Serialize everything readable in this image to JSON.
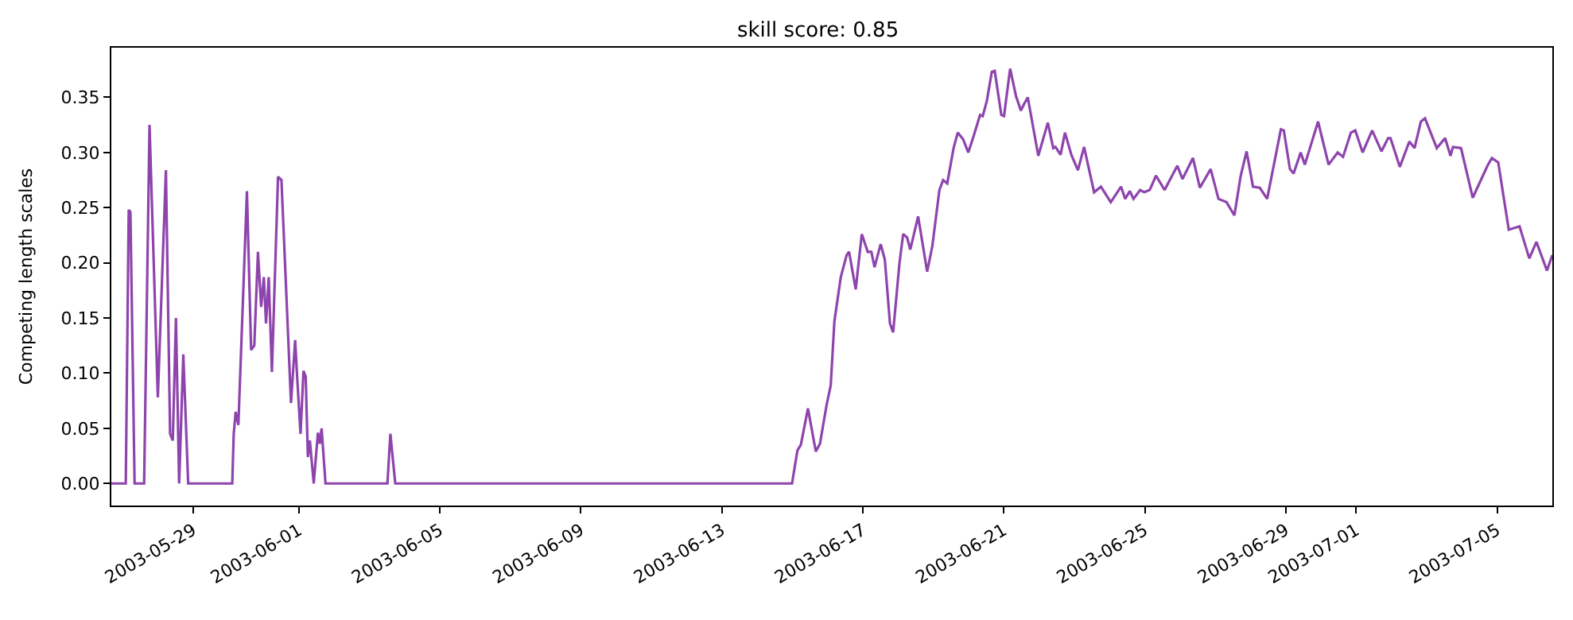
{
  "chart_data": {
    "type": "line",
    "title": "skill score: 0.85",
    "ylabel": "Competing length scales",
    "x": [
      "2003-05-26T16:20",
      "2003-05-27T02:10",
      "2003-05-27T04:10",
      "2003-05-27T05:20",
      "2003-05-27T08:10",
      "2003-05-27T14:40",
      "2003-05-27T18:20",
      "2003-05-28T00:00",
      "2003-05-28T05:30",
      "2003-05-28T08:20",
      "2003-05-28T10:10",
      "2003-05-28T12:20",
      "2003-05-28T14:30",
      "2003-05-28T17:20",
      "2003-05-28T20:40",
      "2003-05-30T02:40",
      "2003-05-30T03:40",
      "2003-05-30T05:00",
      "2003-05-30T06:50",
      "2003-05-30T12:40",
      "2003-05-30T15:30",
      "2003-05-30T17:40",
      "2003-05-30T20:10",
      "2003-05-30T22:20",
      "2003-05-31T00:10",
      "2003-05-31T01:40",
      "2003-05-31T03:30",
      "2003-05-31T05:40",
      "2003-05-31T09:50",
      "2003-05-31T12:10",
      "2003-05-31T18:40",
      "2003-05-31T21:30",
      "2003-05-31T22:50",
      "2003-06-01T01:10",
      "2003-06-01T03:10",
      "2003-06-01T04:40",
      "2003-06-01T06:10",
      "2003-06-01T07:30",
      "2003-06-01T10:10",
      "2003-06-01T13:00",
      "2003-06-01T14:20",
      "2003-06-01T15:30",
      "2003-06-01T18:10",
      "2003-06-03T12:20",
      "2003-06-03T14:20",
      "2003-06-03T17:40",
      "2003-06-14T23:50",
      "2003-06-15T03:30",
      "2003-06-15T05:50",
      "2003-06-15T10:40",
      "2003-06-15T16:00",
      "2003-06-15T18:50",
      "2003-06-15T23:20",
      "2003-06-16T02:10",
      "2003-06-16T04:40",
      "2003-06-16T09:00",
      "2003-06-16T13:00",
      "2003-06-16T14:40",
      "2003-06-16T19:10",
      "2003-06-16T23:20",
      "2003-06-17T03:20",
      "2003-06-17T05:50",
      "2003-06-17T08:00",
      "2003-06-17T12:10",
      "2003-06-17T15:00",
      "2003-06-17T18:30",
      "2003-06-17T20:40",
      "2003-06-18T01:00",
      "2003-06-18T03:30",
      "2003-06-18T06:10",
      "2003-06-18T08:20",
      "2003-06-18T13:40",
      "2003-06-18T19:50",
      "2003-06-18T23:20",
      "2003-06-19T04:10",
      "2003-06-19T06:40",
      "2003-06-19T09:30",
      "2003-06-19T13:50",
      "2003-06-19T16:40",
      "2003-06-19T20:20",
      "2003-06-19T23:50",
      "2003-06-20T03:30",
      "2003-06-20T07:50",
      "2003-06-20T09:40",
      "2003-06-20T12:30",
      "2003-06-20T15:50",
      "2003-06-20T17:50",
      "2003-06-20T22:20",
      "2003-06-21T00:10",
      "2003-06-21T04:20",
      "2003-06-21T08:20",
      "2003-06-21T11:40",
      "2003-06-21T13:50",
      "2003-06-21T16:20",
      "2003-06-21T23:30",
      "2003-06-22T06:00",
      "2003-06-22T09:40",
      "2003-06-22T11:10",
      "2003-06-22T14:40",
      "2003-06-22T17:40",
      "2003-06-22T22:00",
      "2003-06-23T02:30",
      "2003-06-23T06:40",
      "2003-06-23T13:30",
      "2003-06-23T18:10",
      "2003-06-24T00:50",
      "2003-06-24T07:50",
      "2003-06-24T10:40",
      "2003-06-24T13:50",
      "2003-06-24T16:20",
      "2003-06-24T20:50",
      "2003-06-24T23:40",
      "2003-06-25T03:20",
      "2003-06-25T07:40",
      "2003-06-25T13:30",
      "2003-06-25T22:10",
      "2003-06-26T01:40",
      "2003-06-26T08:50",
      "2003-06-26T13:30",
      "2003-06-26T20:50",
      "2003-06-27T02:10",
      "2003-06-27T07:40",
      "2003-06-27T13:00",
      "2003-06-27T17:20",
      "2003-06-27T21:20",
      "2003-06-28T01:40",
      "2003-06-28T06:20",
      "2003-06-28T11:20",
      "2003-06-28T20:40",
      "2003-06-28T22:40",
      "2003-06-29T02:50",
      "2003-06-29T05:20",
      "2003-06-29T10:10",
      "2003-06-29T13:00",
      "2003-06-29T22:00",
      "2003-06-30T05:10",
      "2003-06-30T11:20",
      "2003-06-30T15:00",
      "2003-06-30T20:20",
      "2003-06-30T23:20",
      "2003-07-01T04:20",
      "2003-07-01T10:50",
      "2003-07-01T17:10",
      "2003-07-01T21:40",
      "2003-07-01T23:20",
      "2003-07-02T05:40",
      "2003-07-02T12:10",
      "2003-07-02T15:40",
      "2003-07-02T20:00",
      "2003-07-02T22:50",
      "2003-07-03T06:50",
      "2003-07-03T12:30",
      "2003-07-03T16:10",
      "2003-07-03T17:50",
      "2003-07-03T23:20",
      "2003-07-04T07:20",
      "2003-07-04T17:20",
      "2003-07-04T20:20",
      "2003-07-05T00:40",
      "2003-07-05T07:50",
      "2003-07-05T15:10",
      "2003-07-05T21:50",
      "2003-07-06T02:40",
      "2003-07-06T09:50",
      "2003-07-06T13:30"
    ],
    "series": [
      {
        "color": "#8e44ad",
        "values": [
          0,
          0,
          0.248,
          0.246,
          0,
          0,
          0.325,
          0.078,
          0.284,
          0.045,
          0.039,
          0.15,
          0,
          0.117,
          0,
          0,
          0.045,
          0.065,
          0.053,
          0.265,
          0.121,
          0.125,
          0.21,
          0.16,
          0.187,
          0.145,
          0.187,
          0.101,
          0.278,
          0.275,
          0.073,
          0.13,
          0.097,
          0.045,
          0.102,
          0.097,
          0.024,
          0.039,
          0,
          0.046,
          0.036,
          0.05,
          0,
          0,
          0.045,
          0,
          0,
          0.03,
          0.035,
          0.068,
          0.029,
          0.036,
          0.071,
          0.089,
          0.147,
          0.187,
          0.207,
          0.21,
          0.176,
          0.226,
          0.21,
          0.21,
          0.196,
          0.217,
          0.203,
          0.145,
          0.137,
          0.2,
          0.226,
          0.223,
          0.212,
          0.242,
          0.192,
          0.215,
          0.266,
          0.275,
          0.272,
          0.304,
          0.318,
          0.312,
          0.3,
          0.315,
          0.334,
          0.333,
          0.347,
          0.373,
          0.374,
          0.334,
          0.333,
          0.376,
          0.351,
          0.338,
          0.344,
          0.35,
          0.297,
          0.327,
          0.304,
          0.305,
          0.298,
          0.318,
          0.298,
          0.284,
          0.305,
          0.264,
          0.269,
          0.255,
          0.269,
          0.258,
          0.265,
          0.258,
          0.266,
          0.264,
          0.266,
          0.279,
          0.266,
          0.288,
          0.276,
          0.295,
          0.268,
          0.285,
          0.258,
          0.255,
          0.243,
          0.279,
          0.301,
          0.269,
          0.268,
          0.258,
          0.321,
          0.32,
          0.285,
          0.281,
          0.3,
          0.289,
          0.328,
          0.289,
          0.3,
          0.296,
          0.318,
          0.32,
          0.3,
          0.32,
          0.301,
          0.313,
          0.313,
          0.287,
          0.31,
          0.304,
          0.328,
          0.331,
          0.304,
          0.313,
          0.297,
          0.305,
          0.304,
          0.259,
          0.288,
          0.295,
          0.291,
          0.23,
          0.233,
          0.204,
          0.219,
          0.193,
          0.207
        ]
      }
    ],
    "xlim": [
      "2003-05-26T16:20",
      "2003-07-06T13:30"
    ],
    "xticks": [
      {
        "value": "2003-05-29",
        "label": "2003-05-29"
      },
      {
        "value": "2003-06-01",
        "label": "2003-06-01"
      },
      {
        "value": "2003-06-05",
        "label": "2003-06-05"
      },
      {
        "value": "2003-06-09",
        "label": "2003-06-09"
      },
      {
        "value": "2003-06-13",
        "label": "2003-06-13"
      },
      {
        "value": "2003-06-17",
        "label": "2003-06-17"
      },
      {
        "value": "2003-06-21",
        "label": "2003-06-21"
      },
      {
        "value": "2003-06-25",
        "label": "2003-06-25"
      },
      {
        "value": "2003-06-29",
        "label": "2003-06-29"
      },
      {
        "value": "2003-07-01",
        "label": "2003-07-01"
      },
      {
        "value": "2003-07-05",
        "label": "2003-07-05"
      }
    ],
    "ylim": [
      -0.02,
      0.395
    ],
    "yticks": [
      {
        "value": 0,
        "label": "0.00"
      },
      {
        "value": 0.05,
        "label": "0.05"
      },
      {
        "value": 0.1,
        "label": "0.10"
      },
      {
        "value": 0.15,
        "label": "0.15"
      },
      {
        "value": 0.2,
        "label": "0.20"
      },
      {
        "value": 0.25,
        "label": "0.25"
      },
      {
        "value": 0.3,
        "label": "0.30"
      },
      {
        "value": 0.35,
        "label": "0.35"
      }
    ],
    "marker": "none"
  }
}
